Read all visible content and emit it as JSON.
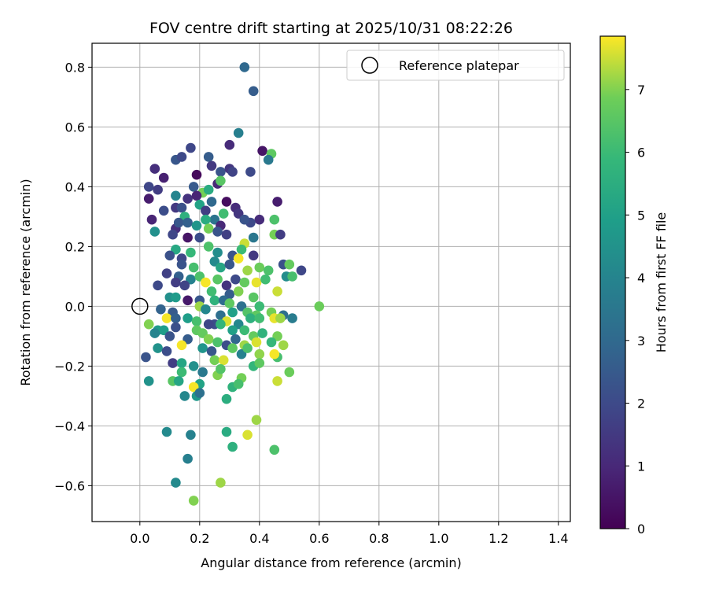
{
  "chart_data": {
    "type": "scatter",
    "title": "FOV centre drift starting at 2025/10/31 08:22:26",
    "xlabel": "Angular distance from reference (arcmin)",
    "ylabel": "Rotation from reference (arcmin)",
    "xlim": [
      -0.16,
      1.44
    ],
    "ylim": [
      -0.72,
      0.88
    ],
    "xticks": [
      0.0,
      0.2,
      0.4,
      0.6,
      0.8,
      1.0,
      1.2,
      1.4
    ],
    "xtick_labels": [
      "0.0",
      "0.2",
      "0.4",
      "0.6",
      "0.8",
      "1.0",
      "1.2",
      "1.4"
    ],
    "yticks": [
      -0.6,
      -0.4,
      -0.2,
      0.0,
      0.2,
      0.4,
      0.6,
      0.8
    ],
    "ytick_labels": [
      "−0.6",
      "−0.4",
      "−0.2",
      "0.0",
      "0.2",
      "0.4",
      "0.6",
      "0.8"
    ],
    "grid": true,
    "legend": {
      "position": "top-right",
      "label": "Reference platepar"
    },
    "reference_point": {
      "x": 0.0,
      "y": 0.0
    },
    "colorbar": {
      "label": "Hours from first FF file",
      "range": [
        0,
        7.85
      ],
      "ticks": [
        0,
        1,
        2,
        3,
        4,
        5,
        6,
        7
      ],
      "colormap": "viridis"
    },
    "points": [
      {
        "x": 0.35,
        "y": 0.8,
        "t": 3.0
      },
      {
        "x": 0.38,
        "y": 0.72,
        "t": 2.6
      },
      {
        "x": 0.33,
        "y": 0.58,
        "t": 3.8
      },
      {
        "x": 0.3,
        "y": 0.54,
        "t": 1.1
      },
      {
        "x": 0.41,
        "y": 0.52,
        "t": 0.5
      },
      {
        "x": 0.44,
        "y": 0.51,
        "t": 6.6
      },
      {
        "x": 0.17,
        "y": 0.53,
        "t": 1.9
      },
      {
        "x": 0.23,
        "y": 0.5,
        "t": 2.6
      },
      {
        "x": 0.12,
        "y": 0.49,
        "t": 2.4
      },
      {
        "x": 0.14,
        "y": 0.5,
        "t": 2.0
      },
      {
        "x": 0.05,
        "y": 0.46,
        "t": 1.2
      },
      {
        "x": 0.08,
        "y": 0.43,
        "t": 0.8
      },
      {
        "x": 0.19,
        "y": 0.44,
        "t": 0.2
      },
      {
        "x": 0.24,
        "y": 0.47,
        "t": 1.5
      },
      {
        "x": 0.27,
        "y": 0.45,
        "t": 2.3
      },
      {
        "x": 0.3,
        "y": 0.46,
        "t": 1.4
      },
      {
        "x": 0.31,
        "y": 0.45,
        "t": 1.8
      },
      {
        "x": 0.37,
        "y": 0.45,
        "t": 2.0
      },
      {
        "x": 0.43,
        "y": 0.49,
        "t": 3.6
      },
      {
        "x": 0.03,
        "y": 0.4,
        "t": 1.9
      },
      {
        "x": 0.06,
        "y": 0.39,
        "t": 1.6
      },
      {
        "x": 0.03,
        "y": 0.36,
        "t": 0.7
      },
      {
        "x": 0.18,
        "y": 0.4,
        "t": 2.5
      },
      {
        "x": 0.21,
        "y": 0.38,
        "t": 6.9
      },
      {
        "x": 0.23,
        "y": 0.39,
        "t": 5.4
      },
      {
        "x": 0.26,
        "y": 0.41,
        "t": 1.0
      },
      {
        "x": 0.27,
        "y": 0.42,
        "t": 6.5
      },
      {
        "x": 0.12,
        "y": 0.37,
        "t": 4.0
      },
      {
        "x": 0.16,
        "y": 0.36,
        "t": 1.3
      },
      {
        "x": 0.19,
        "y": 0.37,
        "t": 0.9
      },
      {
        "x": 0.24,
        "y": 0.35,
        "t": 3.0
      },
      {
        "x": 0.29,
        "y": 0.35,
        "t": 0.3
      },
      {
        "x": 0.32,
        "y": 0.33,
        "t": 1.1
      },
      {
        "x": 0.4,
        "y": 0.29,
        "t": 1.1
      },
      {
        "x": 0.46,
        "y": 0.35,
        "t": 0.7
      },
      {
        "x": 0.08,
        "y": 0.32,
        "t": 2.1
      },
      {
        "x": 0.12,
        "y": 0.33,
        "t": 1.5
      },
      {
        "x": 0.14,
        "y": 0.33,
        "t": 2.2
      },
      {
        "x": 0.15,
        "y": 0.3,
        "t": 5.6
      },
      {
        "x": 0.2,
        "y": 0.34,
        "t": 5.1
      },
      {
        "x": 0.22,
        "y": 0.32,
        "t": 1.6
      },
      {
        "x": 0.25,
        "y": 0.29,
        "t": 3.4
      },
      {
        "x": 0.28,
        "y": 0.31,
        "t": 6.1
      },
      {
        "x": 0.33,
        "y": 0.31,
        "t": 1.4
      },
      {
        "x": 0.37,
        "y": 0.28,
        "t": 2.0
      },
      {
        "x": 0.04,
        "y": 0.29,
        "t": 0.9
      },
      {
        "x": 0.12,
        "y": 0.26,
        "t": 1.2
      },
      {
        "x": 0.13,
        "y": 0.28,
        "t": 2.4
      },
      {
        "x": 0.16,
        "y": 0.28,
        "t": 2.7
      },
      {
        "x": 0.19,
        "y": 0.27,
        "t": 4.6
      },
      {
        "x": 0.22,
        "y": 0.29,
        "t": 5.4
      },
      {
        "x": 0.27,
        "y": 0.27,
        "t": 1.0
      },
      {
        "x": 0.35,
        "y": 0.29,
        "t": 2.3
      },
      {
        "x": 0.45,
        "y": 0.29,
        "t": 6.3
      },
      {
        "x": 0.05,
        "y": 0.25,
        "t": 4.4
      },
      {
        "x": 0.11,
        "y": 0.24,
        "t": 1.9
      },
      {
        "x": 0.16,
        "y": 0.23,
        "t": 0.5
      },
      {
        "x": 0.2,
        "y": 0.23,
        "t": 2.1
      },
      {
        "x": 0.23,
        "y": 0.26,
        "t": 6.9
      },
      {
        "x": 0.26,
        "y": 0.25,
        "t": 2.3
      },
      {
        "x": 0.29,
        "y": 0.24,
        "t": 1.7
      },
      {
        "x": 0.38,
        "y": 0.23,
        "t": 3.5
      },
      {
        "x": 0.45,
        "y": 0.24,
        "t": 6.9
      },
      {
        "x": 0.47,
        "y": 0.24,
        "t": 1.6
      },
      {
        "x": 0.35,
        "y": 0.21,
        "t": 7.5
      },
      {
        "x": 0.12,
        "y": 0.19,
        "t": 5.3
      },
      {
        "x": 0.14,
        "y": 0.16,
        "t": 1.9
      },
      {
        "x": 0.1,
        "y": 0.17,
        "t": 2.2
      },
      {
        "x": 0.17,
        "y": 0.18,
        "t": 5.9
      },
      {
        "x": 0.23,
        "y": 0.2,
        "t": 6.3
      },
      {
        "x": 0.26,
        "y": 0.18,
        "t": 4.3
      },
      {
        "x": 0.31,
        "y": 0.17,
        "t": 2.3
      },
      {
        "x": 0.34,
        "y": 0.19,
        "t": 6.0
      },
      {
        "x": 0.38,
        "y": 0.17,
        "t": 1.5
      },
      {
        "x": 0.14,
        "y": 0.14,
        "t": 2.3
      },
      {
        "x": 0.18,
        "y": 0.13,
        "t": 6.2
      },
      {
        "x": 0.25,
        "y": 0.15,
        "t": 4.2
      },
      {
        "x": 0.27,
        "y": 0.13,
        "t": 5.2
      },
      {
        "x": 0.3,
        "y": 0.14,
        "t": 2.4
      },
      {
        "x": 0.33,
        "y": 0.16,
        "t": 7.8
      },
      {
        "x": 0.36,
        "y": 0.12,
        "t": 7.2
      },
      {
        "x": 0.4,
        "y": 0.13,
        "t": 6.8
      },
      {
        "x": 0.43,
        "y": 0.12,
        "t": 6.3
      },
      {
        "x": 0.48,
        "y": 0.14,
        "t": 2.2
      },
      {
        "x": 0.5,
        "y": 0.14,
        "t": 6.7
      },
      {
        "x": 0.54,
        "y": 0.12,
        "t": 1.9
      },
      {
        "x": 0.09,
        "y": 0.11,
        "t": 1.7
      },
      {
        "x": 0.13,
        "y": 0.1,
        "t": 2.7
      },
      {
        "x": 0.17,
        "y": 0.09,
        "t": 3.9
      },
      {
        "x": 0.2,
        "y": 0.1,
        "t": 6.3
      },
      {
        "x": 0.22,
        "y": 0.08,
        "t": 7.8
      },
      {
        "x": 0.26,
        "y": 0.09,
        "t": 6.5
      },
      {
        "x": 0.29,
        "y": 0.07,
        "t": 1.3
      },
      {
        "x": 0.32,
        "y": 0.09,
        "t": 2.0
      },
      {
        "x": 0.35,
        "y": 0.08,
        "t": 6.7
      },
      {
        "x": 0.39,
        "y": 0.08,
        "t": 7.7
      },
      {
        "x": 0.42,
        "y": 0.09,
        "t": 6.1
      },
      {
        "x": 0.49,
        "y": 0.1,
        "t": 4.3
      },
      {
        "x": 0.51,
        "y": 0.1,
        "t": 6.2
      },
      {
        "x": 0.06,
        "y": 0.07,
        "t": 2.0
      },
      {
        "x": 0.12,
        "y": 0.08,
        "t": 1.6
      },
      {
        "x": 0.15,
        "y": 0.07,
        "t": 1.8
      },
      {
        "x": 0.24,
        "y": 0.05,
        "t": 6.1
      },
      {
        "x": 0.3,
        "y": 0.04,
        "t": 2.6
      },
      {
        "x": 0.33,
        "y": 0.05,
        "t": 7.0
      },
      {
        "x": 0.38,
        "y": 0.03,
        "t": 6.5
      },
      {
        "x": 0.46,
        "y": 0.05,
        "t": 7.5
      },
      {
        "x": 0.1,
        "y": 0.03,
        "t": 4.4
      },
      {
        "x": 0.12,
        "y": 0.03,
        "t": 4.8
      },
      {
        "x": 0.16,
        "y": 0.02,
        "t": 0.6
      },
      {
        "x": 0.2,
        "y": 0.02,
        "t": 2.4
      },
      {
        "x": 0.25,
        "y": 0.02,
        "t": 5.7
      },
      {
        "x": 0.28,
        "y": 0.02,
        "t": 3.1
      },
      {
        "x": 0.3,
        "y": 0.01,
        "t": 6.6
      },
      {
        "x": 0.34,
        "y": 0.0,
        "t": 3.3
      },
      {
        "x": 0.4,
        "y": 0.0,
        "t": 6.0
      },
      {
        "x": 0.6,
        "y": 0.0,
        "t": 6.8
      },
      {
        "x": 0.07,
        "y": -0.01,
        "t": 2.8
      },
      {
        "x": 0.11,
        "y": -0.02,
        "t": 2.5
      },
      {
        "x": 0.2,
        "y": 0.0,
        "t": 7.2
      },
      {
        "x": 0.22,
        "y": -0.01,
        "t": 4.1
      },
      {
        "x": 0.27,
        "y": -0.03,
        "t": 3.2
      },
      {
        "x": 0.31,
        "y": -0.02,
        "t": 5.0
      },
      {
        "x": 0.36,
        "y": -0.02,
        "t": 6.4
      },
      {
        "x": 0.39,
        "y": -0.03,
        "t": 6.6
      },
      {
        "x": 0.44,
        "y": -0.02,
        "t": 6.9
      },
      {
        "x": 0.48,
        "y": -0.03,
        "t": 3.2
      },
      {
        "x": 0.09,
        "y": -0.04,
        "t": 7.8
      },
      {
        "x": 0.12,
        "y": -0.04,
        "t": 2.7
      },
      {
        "x": 0.16,
        "y": -0.04,
        "t": 4.9
      },
      {
        "x": 0.19,
        "y": -0.05,
        "t": 6.2
      },
      {
        "x": 0.25,
        "y": -0.06,
        "t": 2.1
      },
      {
        "x": 0.29,
        "y": -0.05,
        "t": 7.6
      },
      {
        "x": 0.33,
        "y": -0.06,
        "t": 4.1
      },
      {
        "x": 0.37,
        "y": -0.04,
        "t": 5.6
      },
      {
        "x": 0.4,
        "y": -0.04,
        "t": 6.1
      },
      {
        "x": 0.45,
        "y": -0.04,
        "t": 7.7
      },
      {
        "x": 0.47,
        "y": -0.04,
        "t": 7.2
      },
      {
        "x": 0.51,
        "y": -0.04,
        "t": 3.7
      },
      {
        "x": 0.03,
        "y": -0.06,
        "t": 7.0
      },
      {
        "x": 0.06,
        "y": -0.08,
        "t": 4.8
      },
      {
        "x": 0.08,
        "y": -0.08,
        "t": 4.9
      },
      {
        "x": 0.12,
        "y": -0.07,
        "t": 2.2
      },
      {
        "x": 0.19,
        "y": -0.08,
        "t": 6.6
      },
      {
        "x": 0.21,
        "y": -0.09,
        "t": 6.7
      },
      {
        "x": 0.23,
        "y": -0.06,
        "t": 1.9
      },
      {
        "x": 0.27,
        "y": -0.06,
        "t": 5.8
      },
      {
        "x": 0.31,
        "y": -0.08,
        "t": 5.0
      },
      {
        "x": 0.35,
        "y": -0.08,
        "t": 6.0
      },
      {
        "x": 0.38,
        "y": -0.1,
        "t": 6.7
      },
      {
        "x": 0.41,
        "y": -0.09,
        "t": 5.7
      },
      {
        "x": 0.46,
        "y": -0.1,
        "t": 6.9
      },
      {
        "x": 0.05,
        "y": -0.09,
        "t": 4.0
      },
      {
        "x": 0.1,
        "y": -0.1,
        "t": 2.3
      },
      {
        "x": 0.16,
        "y": -0.11,
        "t": 2.6
      },
      {
        "x": 0.23,
        "y": -0.11,
        "t": 7.0
      },
      {
        "x": 0.26,
        "y": -0.12,
        "t": 6.3
      },
      {
        "x": 0.29,
        "y": -0.13,
        "t": 2.1
      },
      {
        "x": 0.32,
        "y": -0.11,
        "t": 2.9
      },
      {
        "x": 0.35,
        "y": -0.13,
        "t": 7.2
      },
      {
        "x": 0.39,
        "y": -0.12,
        "t": 7.6
      },
      {
        "x": 0.44,
        "y": -0.12,
        "t": 5.9
      },
      {
        "x": 0.06,
        "y": -0.14,
        "t": 4.5
      },
      {
        "x": 0.09,
        "y": -0.15,
        "t": 2.1
      },
      {
        "x": 0.14,
        "y": -0.13,
        "t": 7.8
      },
      {
        "x": 0.21,
        "y": -0.14,
        "t": 4.6
      },
      {
        "x": 0.24,
        "y": -0.15,
        "t": 2.4
      },
      {
        "x": 0.31,
        "y": -0.14,
        "t": 6.6
      },
      {
        "x": 0.34,
        "y": -0.16,
        "t": 3.9
      },
      {
        "x": 0.36,
        "y": -0.14,
        "t": 6.3
      },
      {
        "x": 0.4,
        "y": -0.16,
        "t": 7.1
      },
      {
        "x": 0.46,
        "y": -0.17,
        "t": 6.2
      },
      {
        "x": 0.48,
        "y": -0.13,
        "t": 7.2
      },
      {
        "x": 0.02,
        "y": -0.17,
        "t": 2.3
      },
      {
        "x": 0.11,
        "y": -0.19,
        "t": 1.6
      },
      {
        "x": 0.14,
        "y": -0.19,
        "t": 5.2
      },
      {
        "x": 0.18,
        "y": -0.2,
        "t": 4.4
      },
      {
        "x": 0.25,
        "y": -0.18,
        "t": 6.9
      },
      {
        "x": 0.28,
        "y": -0.18,
        "t": 7.6
      },
      {
        "x": 0.38,
        "y": -0.2,
        "t": 5.8
      },
      {
        "x": 0.4,
        "y": -0.19,
        "t": 6.6
      },
      {
        "x": 0.45,
        "y": -0.16,
        "t": 7.8
      },
      {
        "x": 0.14,
        "y": -0.22,
        "t": 6.0
      },
      {
        "x": 0.21,
        "y": -0.22,
        "t": 3.6
      },
      {
        "x": 0.26,
        "y": -0.23,
        "t": 7.0
      },
      {
        "x": 0.27,
        "y": -0.21,
        "t": 6.4
      },
      {
        "x": 0.34,
        "y": -0.24,
        "t": 6.9
      },
      {
        "x": 0.5,
        "y": -0.22,
        "t": 6.8
      },
      {
        "x": 0.03,
        "y": -0.25,
        "t": 4.5
      },
      {
        "x": 0.11,
        "y": -0.25,
        "t": 6.5
      },
      {
        "x": 0.13,
        "y": -0.25,
        "t": 5.2
      },
      {
        "x": 0.2,
        "y": -0.26,
        "t": 5.1
      },
      {
        "x": 0.18,
        "y": -0.27,
        "t": 7.8
      },
      {
        "x": 0.31,
        "y": -0.27,
        "t": 5.7
      },
      {
        "x": 0.33,
        "y": -0.26,
        "t": 6.2
      },
      {
        "x": 0.46,
        "y": -0.25,
        "t": 7.5
      },
      {
        "x": 0.15,
        "y": -0.3,
        "t": 4.1
      },
      {
        "x": 0.19,
        "y": -0.3,
        "t": 4.7
      },
      {
        "x": 0.2,
        "y": -0.29,
        "t": 3.3
      },
      {
        "x": 0.29,
        "y": -0.31,
        "t": 5.5
      },
      {
        "x": 0.39,
        "y": -0.38,
        "t": 7.2
      },
      {
        "x": 0.09,
        "y": -0.42,
        "t": 4.2
      },
      {
        "x": 0.17,
        "y": -0.43,
        "t": 3.9
      },
      {
        "x": 0.29,
        "y": -0.42,
        "t": 5.4
      },
      {
        "x": 0.36,
        "y": -0.43,
        "t": 7.6
      },
      {
        "x": 0.31,
        "y": -0.47,
        "t": 5.6
      },
      {
        "x": 0.45,
        "y": -0.48,
        "t": 6.3
      },
      {
        "x": 0.16,
        "y": -0.51,
        "t": 3.8
      },
      {
        "x": 0.12,
        "y": -0.59,
        "t": 4.2
      },
      {
        "x": 0.27,
        "y": -0.59,
        "t": 7.2
      },
      {
        "x": 0.18,
        "y": -0.65,
        "t": 7.0
      }
    ]
  }
}
